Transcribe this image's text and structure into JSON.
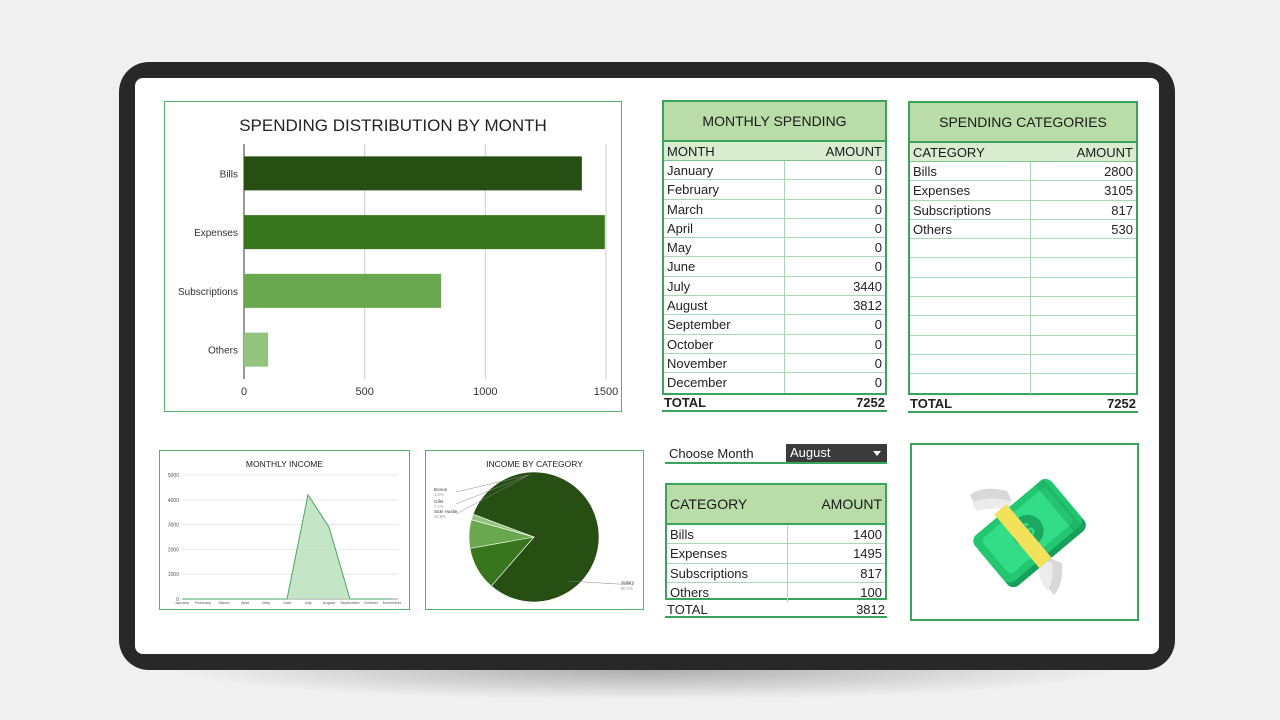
{
  "bar_chart": {
    "title": "SPENDING DISTRIBUTION BY MONTH",
    "categories": [
      "Bills",
      "Expenses",
      "Subscriptions",
      "Others"
    ],
    "values": [
      1400,
      1495,
      817,
      100
    ],
    "colors": [
      "#274e13",
      "#38761d",
      "#6aa84f",
      "#93c47d"
    ],
    "xlim": [
      0,
      1500
    ],
    "ticks": [
      0,
      500,
      1000,
      1500
    ]
  },
  "income_chart": {
    "title": "MONTHLY INCOME",
    "months": [
      "January",
      "February",
      "March",
      "April",
      "May",
      "June",
      "July",
      "August",
      "September",
      "October",
      "November"
    ],
    "values": [
      0,
      0,
      0,
      0,
      0,
      0,
      4200,
      2900,
      0,
      0,
      0
    ],
    "y_ticks": [
      0,
      1000,
      2000,
      3000,
      4000,
      5000
    ],
    "ylim": [
      0,
      5000
    ]
  },
  "income_pie": {
    "title": "INCOME BY CATEGORY",
    "slices": [
      {
        "label": "Salary",
        "pct": "80.7%",
        "value": 80.7,
        "color": "#274e13"
      },
      {
        "label": "Side Hustle",
        "pct": "10.8%",
        "value": 10.8,
        "color": "#38761d"
      },
      {
        "label": "Gifts",
        "pct": "7.1%",
        "value": 7.1,
        "color": "#6aa84f"
      },
      {
        "label": "Bonus",
        "pct": "1.4%",
        "value": 1.4,
        "color": "#93c47d"
      }
    ]
  },
  "monthly_spending": {
    "title": "MONTHLY SPENDING",
    "col1": "MONTH",
    "col2": "AMOUNT",
    "rows": [
      [
        "January",
        "0"
      ],
      [
        "February",
        "0"
      ],
      [
        "March",
        "0"
      ],
      [
        "April",
        "0"
      ],
      [
        "May",
        "0"
      ],
      [
        "June",
        "0"
      ],
      [
        "July",
        "3440"
      ],
      [
        "August",
        "3812"
      ],
      [
        "September",
        "0"
      ],
      [
        "October",
        "0"
      ],
      [
        "November",
        "0"
      ],
      [
        "December",
        "0"
      ]
    ],
    "total_label": "TOTAL",
    "total_value": "7252"
  },
  "spending_categories": {
    "title": "SPENDING CATEGORIES",
    "col1": "CATEGORY",
    "col2": "AMOUNT",
    "rows": [
      [
        "Bills",
        "2800"
      ],
      [
        "Expenses",
        "3105"
      ],
      [
        "Subscriptions",
        "817"
      ],
      [
        "Others",
        "530"
      ]
    ],
    "empty_rows": 8,
    "total_label": "TOTAL",
    "total_value": "7252"
  },
  "month_selector": {
    "label": "Choose Month",
    "value": "August"
  },
  "month_breakdown": {
    "col1": "CATEGORY",
    "col2": "AMOUNT",
    "rows": [
      [
        "Bills",
        "1400"
      ],
      [
        "Expenses",
        "1495"
      ],
      [
        "Subscriptions",
        "817"
      ],
      [
        "Others",
        "100"
      ]
    ],
    "total_label": "TOTAL",
    "total_value": "3812"
  },
  "illustration": {
    "icon": "flying-money-icon"
  }
}
